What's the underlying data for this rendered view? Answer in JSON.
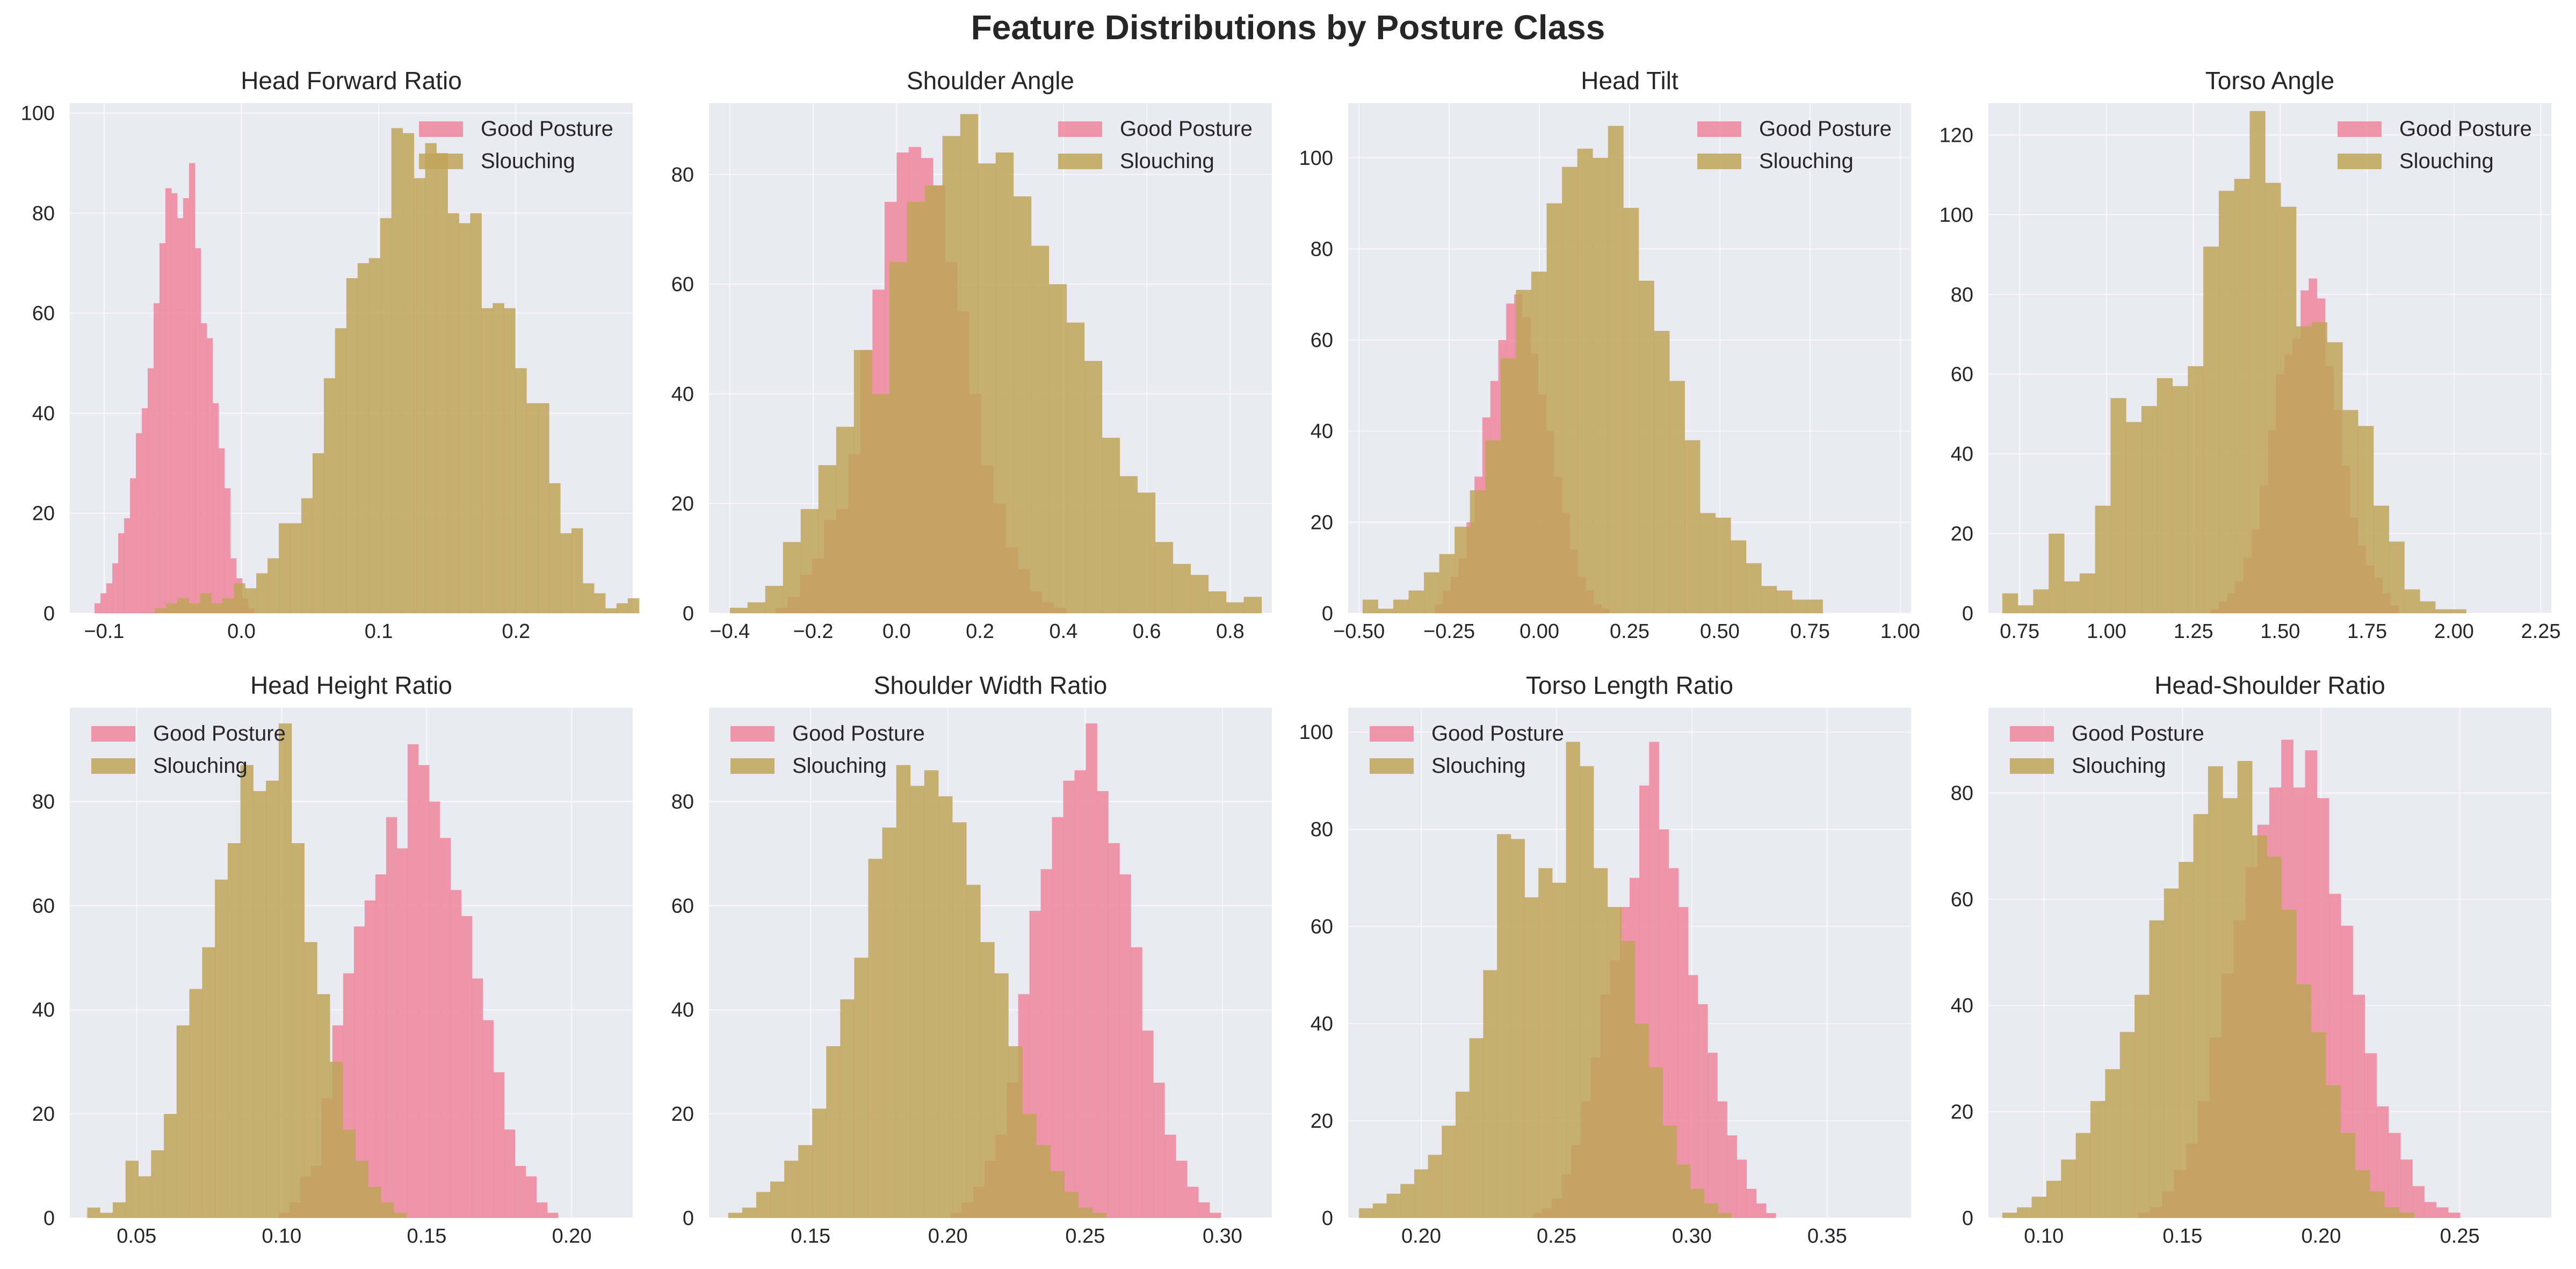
{
  "figure": {
    "title": "Feature Distributions by Posture Class"
  },
  "colors": {
    "good": "#f0869c",
    "slouch": "#bfa459",
    "background": "#eaeaf2",
    "grid": "#ffffff",
    "text": "#262626"
  },
  "chart_data": [
    {
      "type": "histogram",
      "title": "Head Forward Ratio",
      "xticks": [
        -0.1,
        0.0,
        0.1,
        0.2
      ],
      "xlim": [
        -0.125,
        0.285
      ],
      "yticks": [
        0,
        20,
        40,
        60,
        80,
        100
      ],
      "ylim": [
        0,
        102
      ],
      "grid": true,
      "legend_position": "top-right",
      "series": [
        {
          "name": "Good Posture",
          "bin_start": -0.107,
          "bin_width": 0.0043,
          "counts": [
            2,
            4,
            6,
            10,
            16,
            19,
            27,
            36,
            41,
            49,
            62,
            74,
            85,
            84,
            79,
            83,
            90,
            73,
            58,
            55,
            42,
            33,
            25,
            11,
            7,
            3,
            1
          ]
        },
        {
          "name": "Slouching",
          "bin_start": -0.063,
          "bin_width": 0.0082,
          "counts": [
            1,
            2,
            3,
            2,
            4,
            2,
            3,
            6,
            5,
            8,
            11,
            18,
            18,
            23,
            32,
            47,
            57,
            67,
            70,
            71,
            79,
            97,
            96,
            87,
            94,
            92,
            80,
            78,
            80,
            61,
            62,
            61,
            49,
            42,
            42,
            26,
            16,
            17,
            6,
            4,
            1,
            2,
            3
          ]
        }
      ]
    },
    {
      "type": "histogram",
      "title": "Shoulder Angle",
      "xticks": [
        -0.4,
        -0.2,
        0.0,
        0.2,
        0.4,
        0.6,
        0.8
      ],
      "xlim": [
        -0.45,
        0.9
      ],
      "yticks": [
        0,
        20,
        40,
        60,
        80
      ],
      "ylim": [
        0,
        93
      ],
      "grid": true,
      "legend_position": "top-right",
      "series": [
        {
          "name": "Good Posture",
          "bin_start": -0.29,
          "bin_width": 0.029,
          "counts": [
            1,
            3,
            7,
            10,
            17,
            19,
            29,
            48,
            59,
            75,
            84,
            85,
            83,
            78,
            64,
            55,
            40,
            27,
            20,
            12,
            8,
            4,
            2,
            1
          ]
        },
        {
          "name": "Slouching",
          "bin_start": -0.4,
          "bin_width": 0.0425,
          "counts": [
            1,
            2,
            5,
            13,
            19,
            27,
            34,
            48,
            40,
            64,
            75,
            78,
            87,
            91,
            82,
            84,
            76,
            67,
            60,
            53,
            46,
            32,
            25,
            22,
            13,
            9,
            7,
            4,
            2,
            3
          ]
        }
      ]
    },
    {
      "type": "histogram",
      "title": "Head Tilt",
      "xticks": [
        -0.5,
        -0.25,
        0.0,
        0.25,
        0.5,
        0.75,
        1.0
      ],
      "xlim": [
        -0.53,
        1.03
      ],
      "yticks": [
        0,
        20,
        40,
        60,
        80,
        100
      ],
      "ylim": [
        0,
        112
      ],
      "grid": true,
      "legend_position": "top-right",
      "series": [
        {
          "name": "Good Posture",
          "bin_start": -0.29,
          "bin_width": 0.022,
          "counts": [
            2,
            5,
            8,
            12,
            20,
            30,
            43,
            51,
            60,
            68,
            70,
            65,
            57,
            48,
            40,
            30,
            22,
            14,
            8,
            5,
            2,
            1
          ]
        },
        {
          "name": "Slouching",
          "bin_start": -0.49,
          "bin_width": 0.0425,
          "counts": [
            3,
            1,
            3,
            5,
            9,
            13,
            19,
            27,
            38,
            56,
            71,
            75,
            90,
            98,
            102,
            100,
            107,
            89,
            73,
            62,
            51,
            38,
            22,
            21,
            16,
            11,
            6,
            5,
            3,
            3
          ]
        }
      ]
    },
    {
      "type": "histogram",
      "title": "Torso Angle",
      "xticks": [
        0.75,
        1.0,
        1.25,
        1.5,
        1.75,
        2.0,
        2.25
      ],
      "xlim": [
        0.66,
        2.28
      ],
      "yticks": [
        0,
        20,
        40,
        60,
        80,
        100,
        120
      ],
      "ylim": [
        0,
        128
      ],
      "grid": true,
      "legend_position": "top-right",
      "series": [
        {
          "name": "Good Posture",
          "bin_start": 1.3,
          "bin_width": 0.0235,
          "counts": [
            1,
            3,
            5,
            8,
            14,
            21,
            32,
            46,
            60,
            65,
            69,
            81,
            84,
            79,
            62,
            51,
            37,
            24,
            17,
            12,
            9,
            5,
            2
          ]
        },
        {
          "name": "Slouching",
          "bin_start": 0.7,
          "bin_width": 0.0445,
          "counts": [
            5,
            2,
            6,
            20,
            8,
            10,
            27,
            54,
            48,
            52,
            59,
            57,
            62,
            92,
            106,
            109,
            126,
            108,
            102,
            72,
            73,
            68,
            51,
            47,
            27,
            18,
            6,
            3,
            1,
            1
          ]
        }
      ]
    },
    {
      "type": "histogram",
      "title": "Head Height Ratio",
      "xticks": [
        0.05,
        0.1,
        0.15,
        0.2
      ],
      "xlim": [
        0.027,
        0.221
      ],
      "yticks": [
        0,
        20,
        40,
        60,
        80
      ],
      "ylim": [
        0,
        98
      ],
      "grid": true,
      "legend_position": "top-left",
      "series": [
        {
          "name": "Good Posture",
          "bin_start": 0.099,
          "bin_width": 0.0037,
          "counts": [
            1,
            3,
            8,
            10,
            23,
            37,
            47,
            56,
            61,
            66,
            77,
            71,
            91,
            87,
            80,
            73,
            63,
            58,
            46,
            38,
            28,
            17,
            10,
            8,
            3,
            1
          ]
        },
        {
          "name": "Slouching",
          "bin_start": 0.033,
          "bin_width": 0.0044,
          "counts": [
            2,
            1,
            3,
            11,
            8,
            13,
            20,
            37,
            44,
            52,
            65,
            72,
            87,
            82,
            84,
            95,
            72,
            53,
            43,
            30,
            17,
            11,
            6,
            3,
            1
          ]
        }
      ]
    },
    {
      "type": "histogram",
      "title": "Shoulder Width Ratio",
      "xticks": [
        0.15,
        0.2,
        0.25,
        0.3
      ],
      "xlim": [
        0.113,
        0.318
      ],
      "yticks": [
        0,
        20,
        40,
        60,
        80
      ],
      "ylim": [
        0,
        98
      ],
      "grid": true,
      "legend_position": "top-left",
      "series": [
        {
          "name": "Good Posture",
          "bin_start": 0.201,
          "bin_width": 0.0041,
          "counts": [
            1,
            3,
            6,
            11,
            16,
            26,
            43,
            59,
            67,
            77,
            84,
            86,
            95,
            82,
            72,
            66,
            52,
            36,
            26,
            16,
            11,
            6,
            3,
            1
          ]
        },
        {
          "name": "Slouching",
          "bin_start": 0.12,
          "bin_width": 0.0051,
          "counts": [
            1,
            2,
            5,
            7,
            11,
            14,
            21,
            33,
            42,
            50,
            69,
            75,
            87,
            83,
            86,
            81,
            76,
            64,
            53,
            47,
            33,
            20,
            14,
            9,
            5,
            2,
            1
          ]
        }
      ]
    },
    {
      "type": "histogram",
      "title": "Torso Length Ratio",
      "xticks": [
        0.2,
        0.25,
        0.3,
        0.35
      ],
      "xlim": [
        0.173,
        0.381
      ],
      "yticks": [
        0,
        20,
        40,
        60,
        80,
        100
      ],
      "ylim": [
        0,
        105
      ],
      "grid": true,
      "legend_position": "top-left",
      "series": [
        {
          "name": "Good Posture",
          "bin_start": 0.241,
          "bin_width": 0.0036,
          "counts": [
            1,
            2,
            4,
            9,
            15,
            24,
            33,
            46,
            53,
            64,
            70,
            89,
            98,
            80,
            72,
            64,
            50,
            44,
            34,
            24,
            17,
            12,
            6,
            3,
            1
          ]
        },
        {
          "name": "Slouching",
          "bin_start": 0.177,
          "bin_width": 0.0051,
          "counts": [
            2,
            3,
            5,
            7,
            10,
            13,
            19,
            26,
            37,
            51,
            79,
            78,
            66,
            72,
            69,
            98,
            93,
            72,
            64,
            57,
            40,
            31,
            19,
            11,
            6,
            3,
            1
          ]
        }
      ]
    },
    {
      "type": "histogram",
      "title": "Head-Shoulder Ratio",
      "xticks": [
        0.1,
        0.15,
        0.2,
        0.25
      ],
      "xlim": [
        0.08,
        0.283
      ],
      "yticks": [
        0,
        20,
        40,
        60,
        80
      ],
      "ylim": [
        0,
        96
      ],
      "grid": true,
      "legend_position": "top-left",
      "series": [
        {
          "name": "Good Posture",
          "bin_start": 0.134,
          "bin_width": 0.0043,
          "counts": [
            1,
            2,
            5,
            9,
            14,
            22,
            34,
            46,
            56,
            66,
            74,
            81,
            90,
            81,
            88,
            79,
            61,
            55,
            42,
            31,
            21,
            16,
            11,
            6,
            3,
            2,
            1
          ]
        },
        {
          "name": "Slouching",
          "bin_start": 0.085,
          "bin_width": 0.0053,
          "counts": [
            1,
            2,
            4,
            7,
            11,
            16,
            22,
            28,
            35,
            42,
            56,
            62,
            67,
            76,
            85,
            79,
            86,
            72,
            68,
            58,
            44,
            35,
            25,
            16,
            9,
            5,
            2,
            1
          ]
        }
      ]
    }
  ]
}
